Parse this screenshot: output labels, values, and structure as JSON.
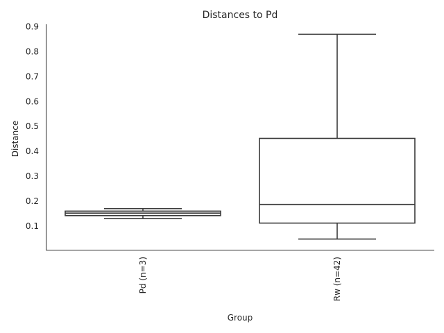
{
  "chart_data": {
    "type": "box",
    "title": "Distances to Pd",
    "xlabel": "Group",
    "ylabel": "Distance",
    "ylim": [
      0.005,
      0.91
    ],
    "yticks": [
      0.1,
      0.2,
      0.3,
      0.4,
      0.5,
      0.6,
      0.7,
      0.8,
      0.9
    ],
    "ytick_labels": [
      "0.1",
      "0.2",
      "0.3",
      "0.4",
      "0.5",
      "0.6",
      "0.7",
      "0.8",
      "0.9"
    ],
    "categories": [
      "Pd (n=3)",
      "Rw (n=42)"
    ],
    "boxes": [
      {
        "category": "Pd (n=3)",
        "whisker_low": 0.13,
        "q1": 0.142,
        "median": 0.152,
        "q3": 0.16,
        "whisker_high": 0.17
      },
      {
        "category": "Rw (n=42)",
        "whisker_low": 0.048,
        "q1": 0.112,
        "median": 0.187,
        "q3": 0.452,
        "whisker_high": 0.87
      }
    ],
    "grid": false,
    "x_tick_rotation": 90
  }
}
